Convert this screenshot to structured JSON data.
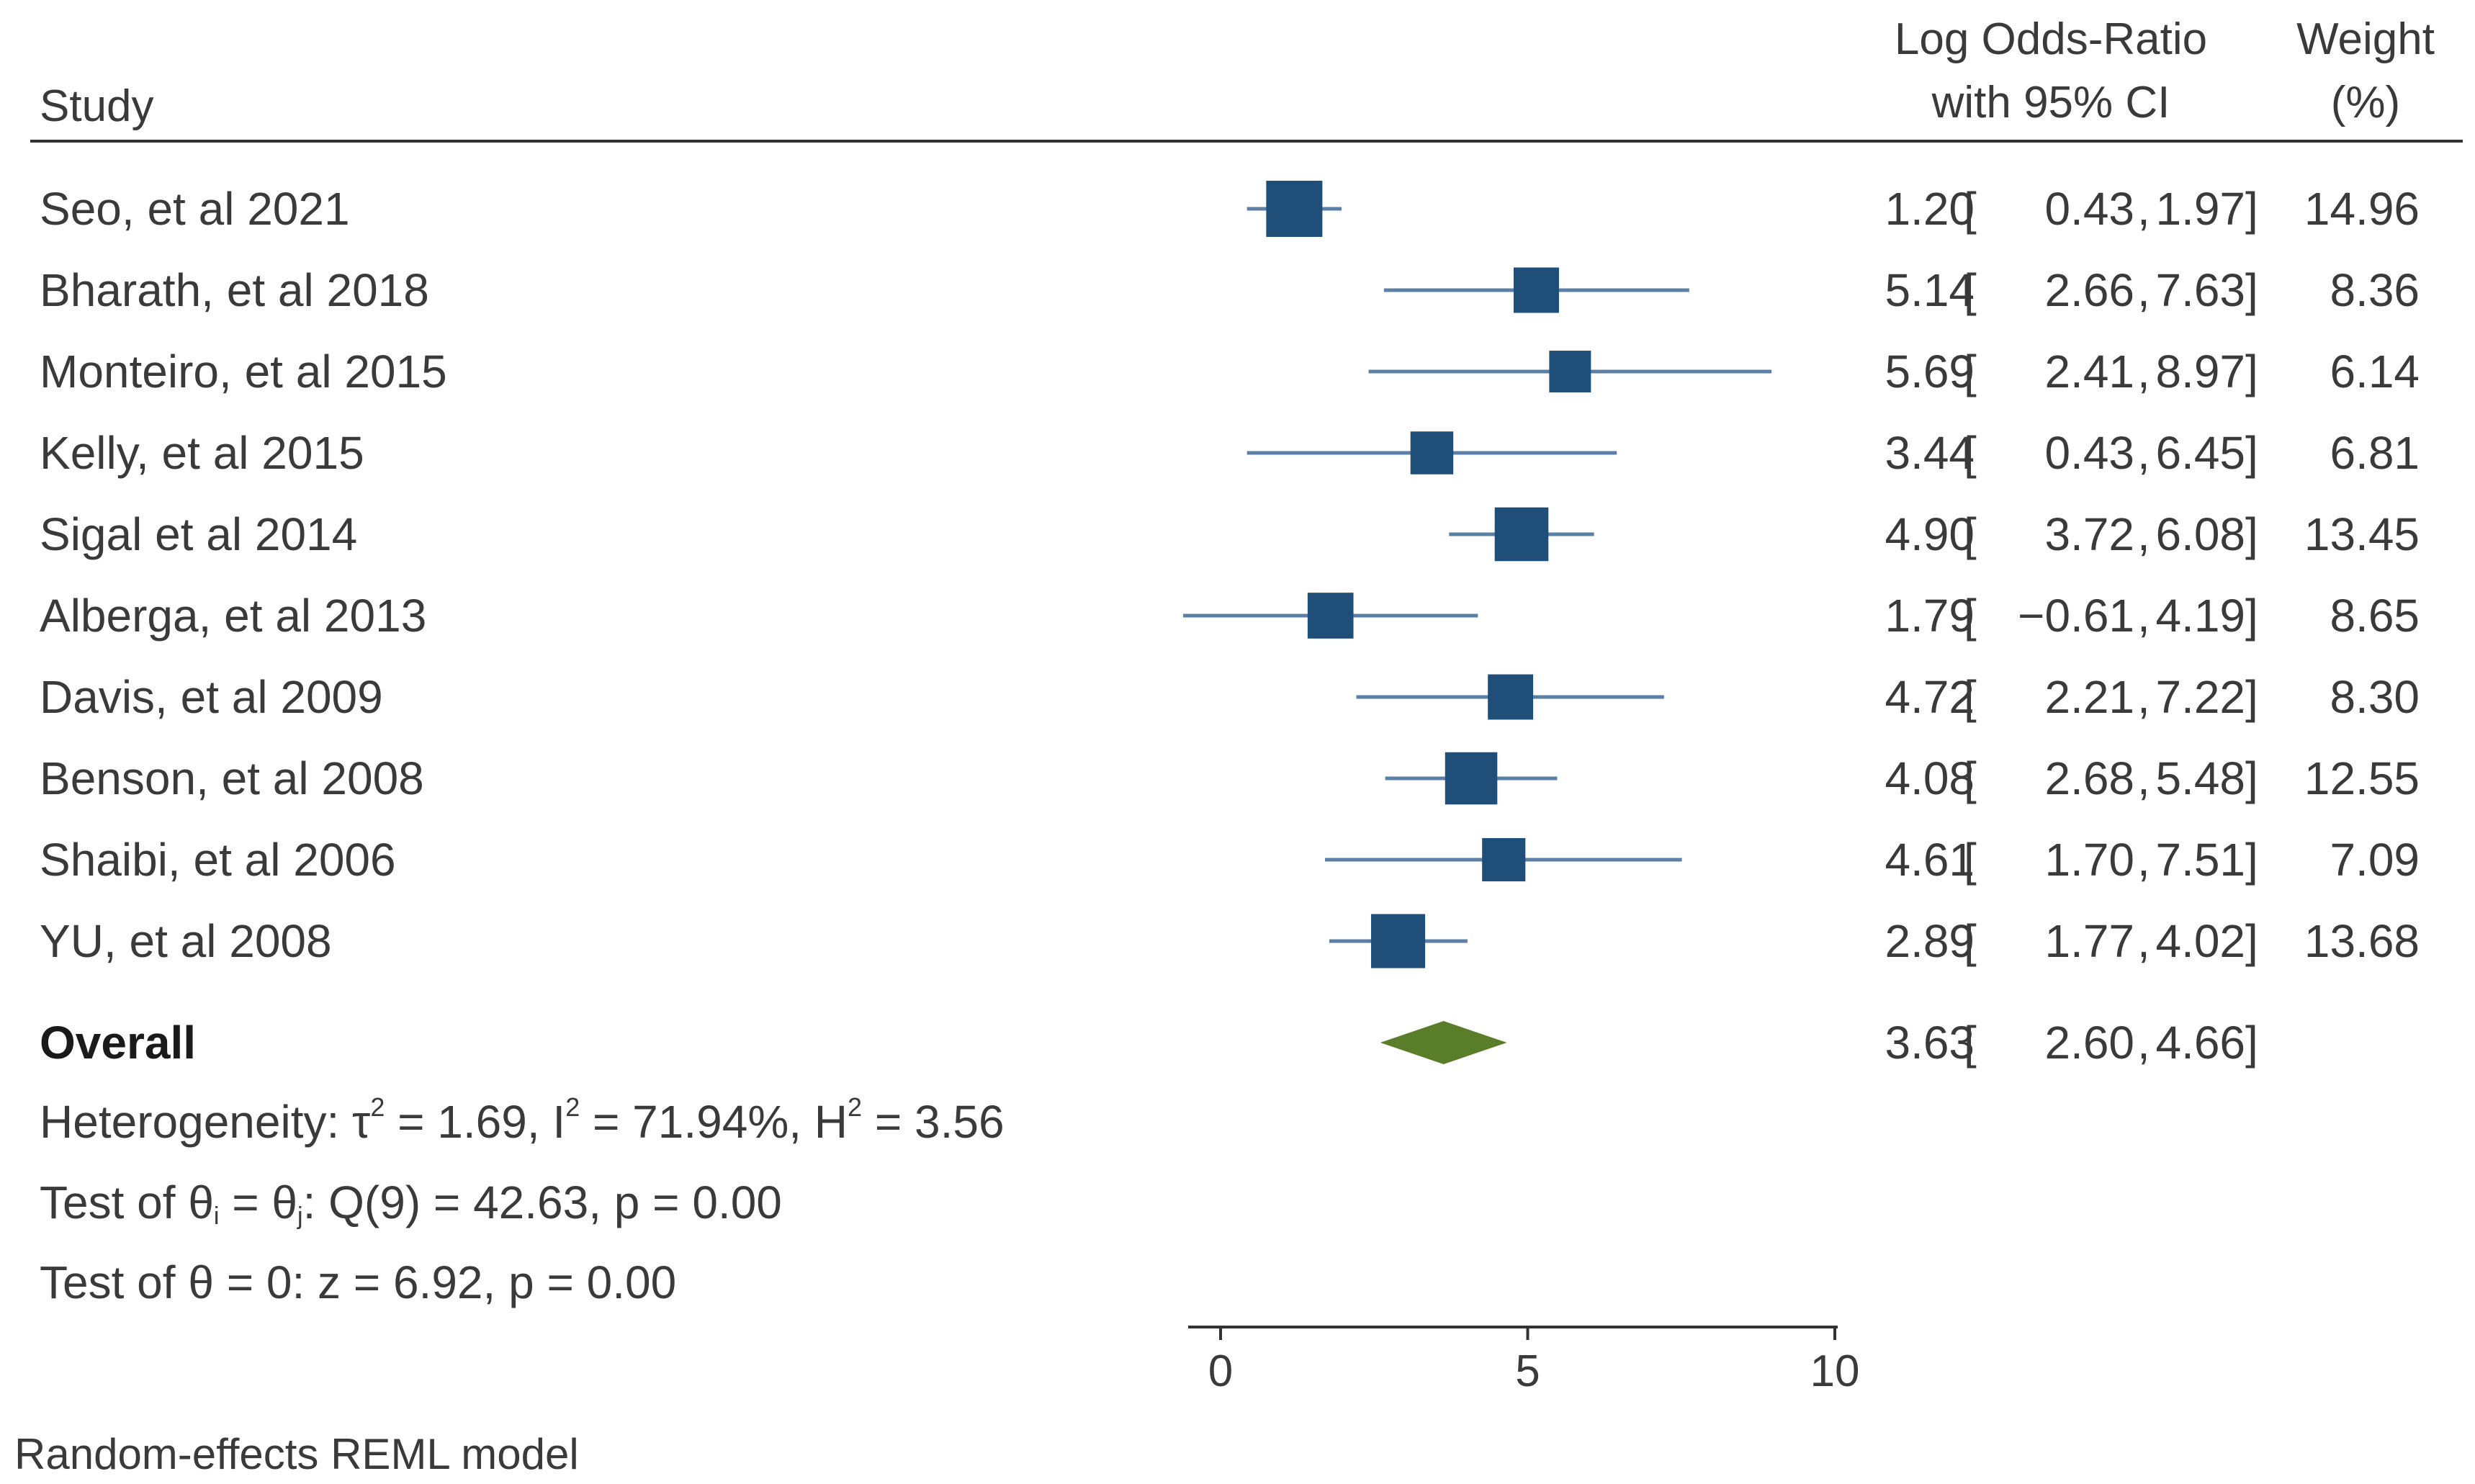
{
  "header": {
    "study": "Study",
    "estimate_line1": "Log Odds-Ratio",
    "estimate_line2": "with 95% CI",
    "weight_line1": "Weight",
    "weight_line2": "(%)"
  },
  "chart_data": {
    "type": "forest",
    "xlim": [
      0,
      10
    ],
    "xticks": [
      0,
      5,
      10
    ],
    "studies": [
      {
        "name": "Seo, et al 2021",
        "estimate": 1.2,
        "lower": 0.43,
        "upper": 1.97,
        "weight": 14.96,
        "est_text": "1.20",
        "lo_text": "0.43",
        "hi_text": "1.97",
        "w_text": "14.96"
      },
      {
        "name": "Bharath, et al 2018",
        "estimate": 5.14,
        "lower": 2.66,
        "upper": 7.63,
        "weight": 8.36,
        "est_text": "5.14",
        "lo_text": "2.66",
        "hi_text": "7.63",
        "w_text": "8.36"
      },
      {
        "name": "Monteiro, et al 2015",
        "estimate": 5.69,
        "lower": 2.41,
        "upper": 8.97,
        "weight": 6.14,
        "est_text": "5.69",
        "lo_text": "2.41",
        "hi_text": "8.97",
        "w_text": "6.14"
      },
      {
        "name": "Kelly, et al 2015",
        "estimate": 3.44,
        "lower": 0.43,
        "upper": 6.45,
        "weight": 6.81,
        "est_text": "3.44",
        "lo_text": "0.43",
        "hi_text": "6.45",
        "w_text": "6.81"
      },
      {
        "name": "Sigal et al 2014",
        "estimate": 4.9,
        "lower": 3.72,
        "upper": 6.08,
        "weight": 13.45,
        "est_text": "4.90",
        "lo_text": "3.72",
        "hi_text": "6.08",
        "w_text": "13.45"
      },
      {
        "name": "Alberga, et al 2013",
        "estimate": 1.79,
        "lower": -0.61,
        "upper": 4.19,
        "weight": 8.65,
        "est_text": "1.79",
        "lo_text": "−0.61",
        "hi_text": "4.19",
        "w_text": "8.65"
      },
      {
        "name": "Davis, et al 2009",
        "estimate": 4.72,
        "lower": 2.21,
        "upper": 7.22,
        "weight": 8.3,
        "est_text": "4.72",
        "lo_text": "2.21",
        "hi_text": "7.22",
        "w_text": "8.30"
      },
      {
        "name": "Benson, et al 2008",
        "estimate": 4.08,
        "lower": 2.68,
        "upper": 5.48,
        "weight": 12.55,
        "est_text": "4.08",
        "lo_text": "2.68",
        "hi_text": "5.48",
        "w_text": "12.55"
      },
      {
        "name": "Shaibi, et al 2006",
        "estimate": 4.61,
        "lower": 1.7,
        "upper": 7.51,
        "weight": 7.09,
        "est_text": "4.61",
        "lo_text": "1.70",
        "hi_text": "7.51",
        "w_text": "7.09"
      },
      {
        "name": "YU, et al 2008",
        "estimate": 2.89,
        "lower": 1.77,
        "upper": 4.02,
        "weight": 13.68,
        "est_text": "2.89",
        "lo_text": "1.77",
        "hi_text": "4.02",
        "w_text": "13.68"
      }
    ],
    "overall": {
      "name": "Overall",
      "estimate": 3.63,
      "lower": 2.6,
      "upper": 4.66,
      "est_text": "3.63",
      "lo_text": "2.60",
      "hi_text": "4.66"
    },
    "colors": {
      "study_marker": "#1f4e79",
      "ci_line": "#5b7fa6",
      "overall_diamond": "#5a7d2a",
      "text": "#3a3a3a"
    }
  },
  "stats": {
    "heterogeneity": {
      "prefix": "Heterogeneity: τ",
      "tau_sup": "2",
      "tau_val": " = 1.69, I",
      "i_sup": "2",
      "i_val": " = 71.94%, H",
      "h_sup": "2",
      "h_val": " = 3.56"
    },
    "test_theta_ij": {
      "prefix": "Test of θ",
      "sub_i": "i",
      "mid": " = θ",
      "sub_j": "j",
      "rest": ": Q(9) = 42.63, p = 0.00"
    },
    "test_theta_0": "Test of θ = 0: z = 6.92, p = 0.00"
  },
  "footer": {
    "model": "Random-effects REML model"
  }
}
